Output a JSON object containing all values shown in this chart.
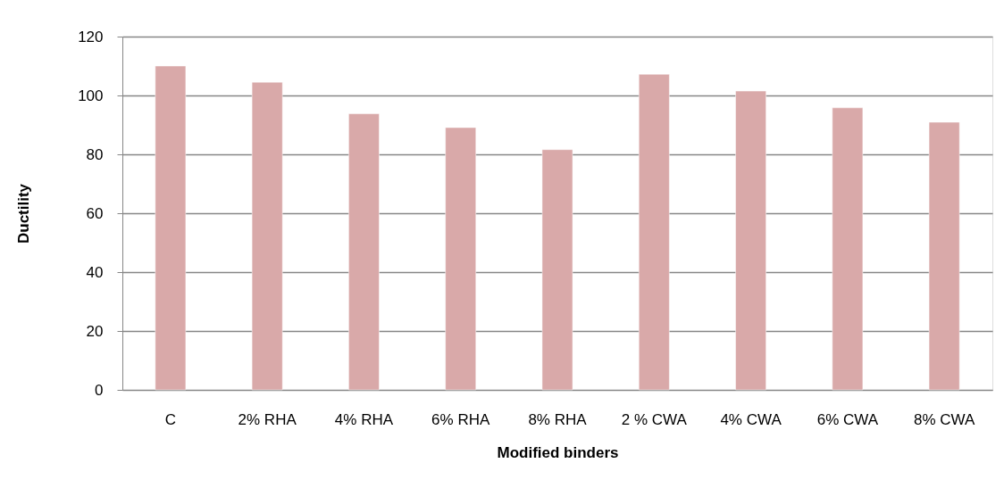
{
  "chart_data": {
    "type": "bar",
    "xlabel": "Modified binders",
    "ylabel": "Ductility",
    "categories": [
      "C",
      "2% RHA",
      "4% RHA",
      "6% RHA",
      "8% RHA",
      "2 % CWA",
      "4% CWA",
      "6% CWA",
      "8% CWA"
    ],
    "values": [
      110,
      104.5,
      93.8,
      89.1,
      81.6,
      107.2,
      101.5,
      95.8,
      90.9
    ],
    "color": "#d9a9a9",
    "ylim": [
      0,
      120
    ],
    "yticks": [
      0,
      20,
      40,
      60,
      80,
      100,
      120
    ],
    "grid": "y"
  }
}
